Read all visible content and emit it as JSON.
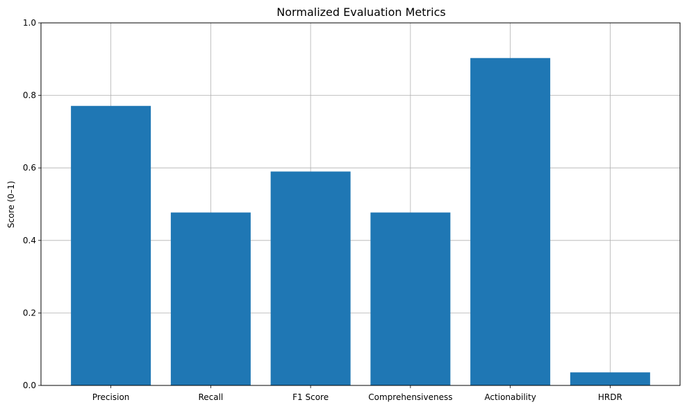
{
  "chart_data": {
    "type": "bar",
    "title": "Normalized Evaluation Metrics",
    "xlabel": "",
    "ylabel": "Score (0–1)",
    "categories": [
      "Precision",
      "Recall",
      "F1 Score",
      "Comprehensiveness",
      "Actionability",
      "HRDR"
    ],
    "values": [
      0.771,
      0.477,
      0.59,
      0.477,
      0.903,
      0.036
    ],
    "ylim": [
      0,
      1
    ],
    "yticks": [
      "0.0",
      "0.2",
      "0.4",
      "0.6",
      "0.8",
      "1.0"
    ],
    "grid": true,
    "bar_color": "#1f77b4",
    "grid_color": "#b0b0b0"
  }
}
